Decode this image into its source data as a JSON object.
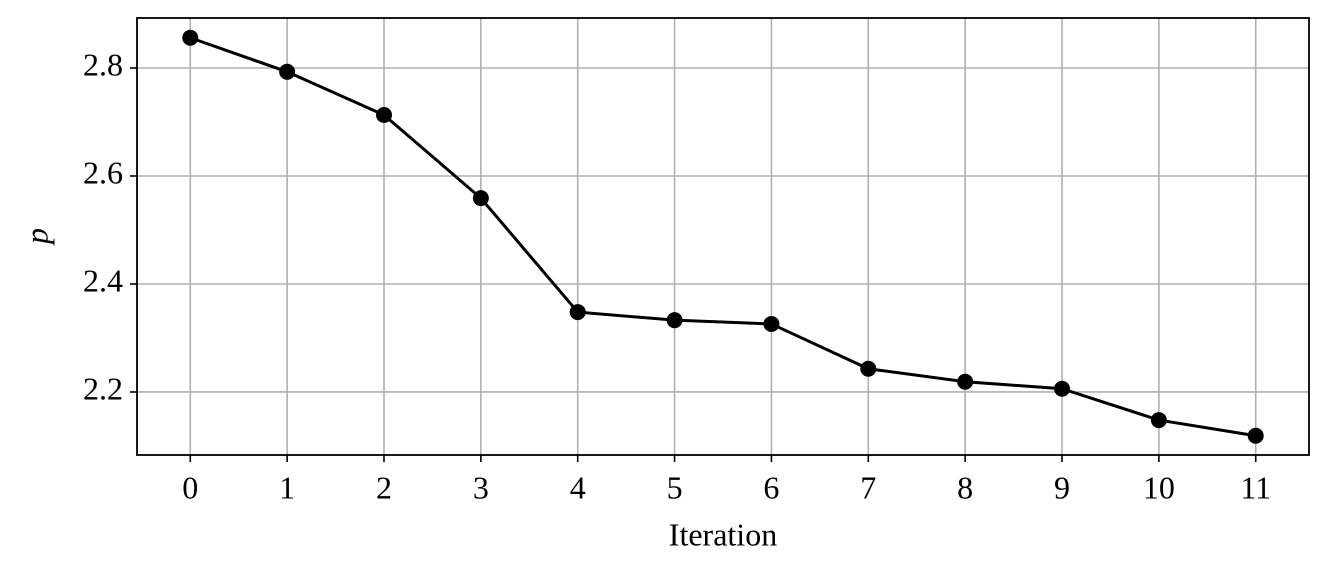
{
  "chart_data": {
    "type": "line",
    "x_label": "Iteration",
    "y_label": "p",
    "x": [
      0,
      1,
      2,
      3,
      4,
      5,
      6,
      7,
      8,
      9,
      10,
      11
    ],
    "series": [
      {
        "color": "#000000",
        "values": [
          2.856,
          2.793,
          2.713,
          2.559,
          2.348,
          2.333,
          2.326,
          2.243,
          2.219,
          2.206,
          2.148,
          2.119
        ]
      }
    ],
    "xlim": [
      -0.55,
      11.55
    ],
    "xticks": [
      0,
      1,
      2,
      3,
      4,
      5,
      6,
      7,
      8,
      9,
      10,
      11
    ],
    "ylim": [
      2.0833,
      2.8926
    ],
    "yticks": [
      2.2,
      2.4,
      2.6,
      2.8
    ],
    "grid": true
  }
}
